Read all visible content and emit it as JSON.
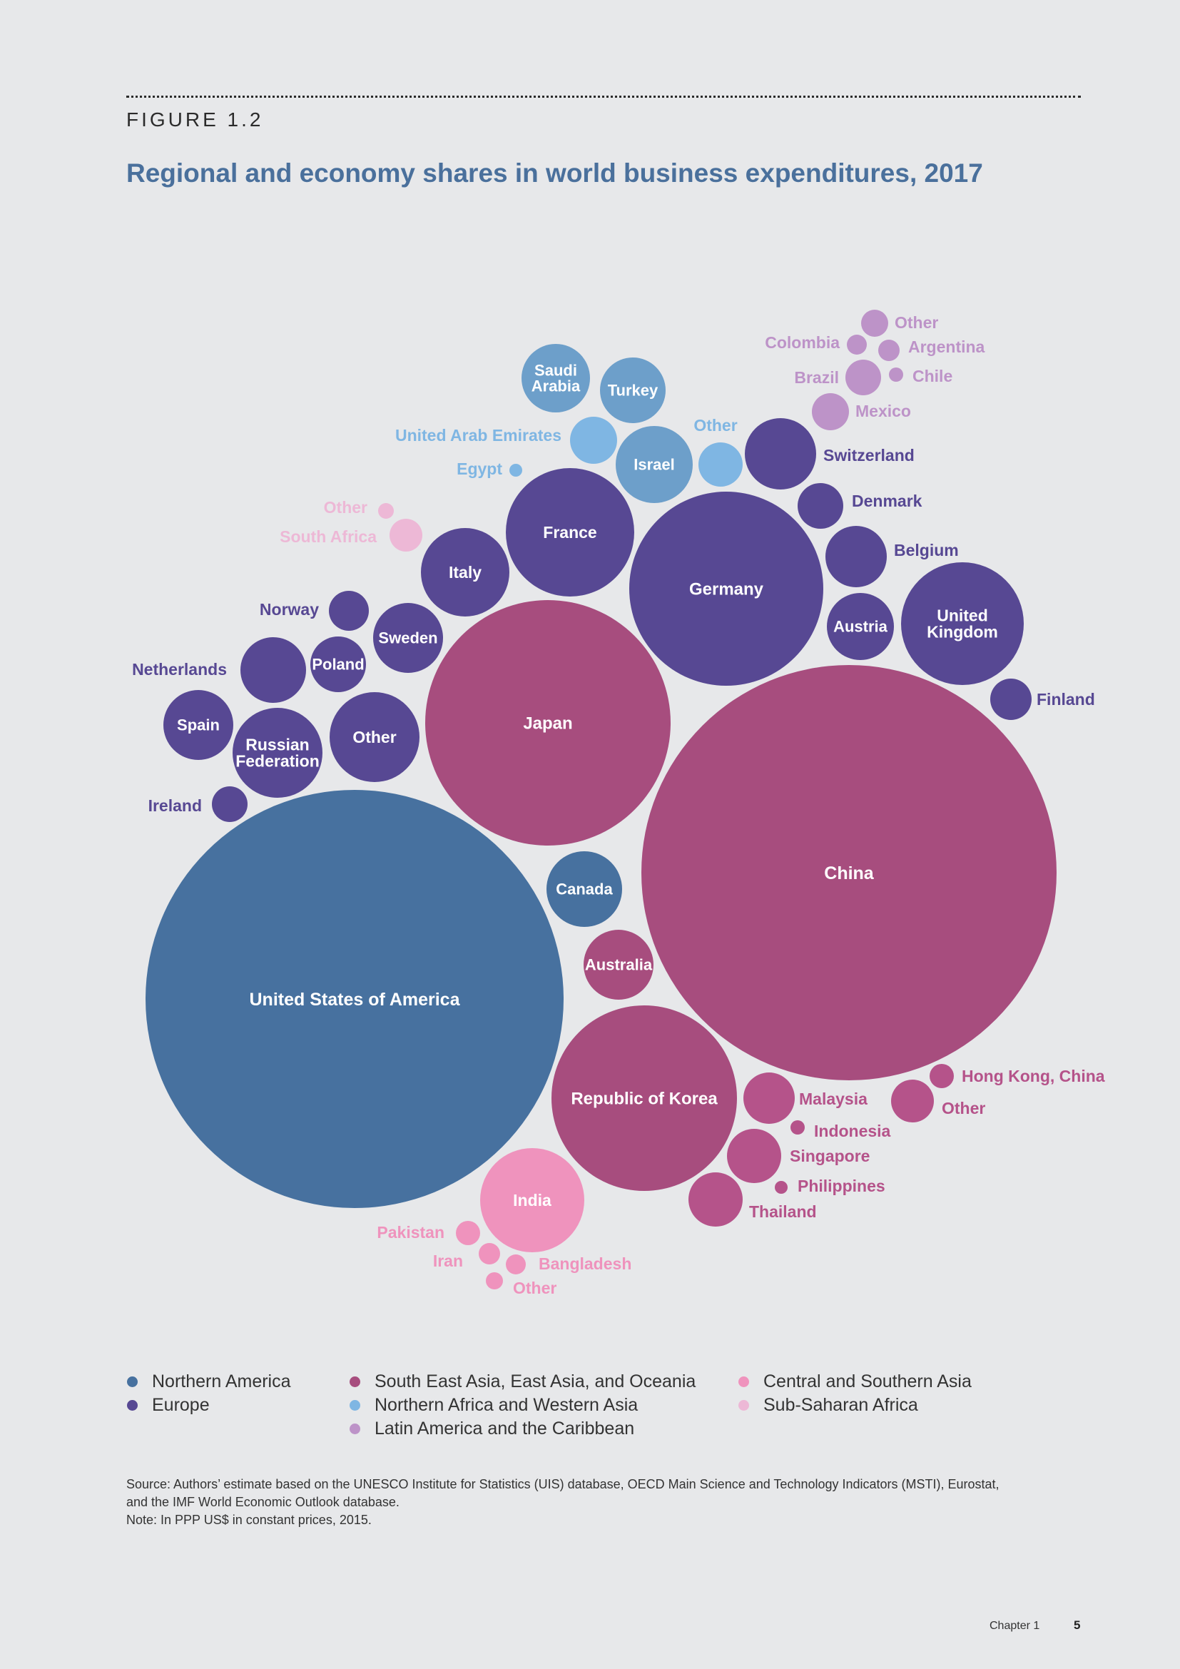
{
  "figure_label": "FIGURE 1.2",
  "colors": {
    "northern_america": "#47719f",
    "europe": "#574893",
    "asia_pacific": "#a74d7e",
    "nafrica_wasia": "#7fb6e3",
    "nafrica_wasia_dark": "#6d9fca",
    "latin_america": "#bd93c8",
    "central_south_asia": "#ef93bd",
    "sub_saharan_africa": "#edb8d6",
    "asia_pacific_light": "#b5538a"
  },
  "chart_data": {
    "type": "bubble",
    "title": "Regional and economy shares in world business expenditures, 2017",
    "unit": "share of world business expenditure (relative bubble size)",
    "regions": [
      "Northern America",
      "Europe",
      "South East Asia, East Asia, and Oceania",
      "Northern Africa and Western Asia",
      "Latin America and the Caribbean",
      "Central and Southern Asia",
      "Sub-Saharan Africa"
    ],
    "bubbles": [
      {
        "label": "United States of America",
        "region": "Northern America",
        "size": 100
      },
      {
        "label": "Canada",
        "region": "Northern America",
        "size": 3.4
      },
      {
        "label": "China",
        "region": "South East Asia, East Asia, and Oceania",
        "size": 99
      },
      {
        "label": "Japan",
        "region": "South East Asia, East Asia, and Oceania",
        "size": 34.5
      },
      {
        "label": "Republic of Korea",
        "region": "South East Asia, East Asia, and Oceania",
        "size": 19.8
      },
      {
        "label": "Australia",
        "region": "South East Asia, East Asia, and Oceania",
        "size": 2.8
      },
      {
        "label": "Malaysia",
        "region": "South East Asia, East Asia, and Oceania",
        "size": 1.6
      },
      {
        "label": "Singapore",
        "region": "South East Asia, East Asia, and Oceania",
        "size": 1.7
      },
      {
        "label": "Thailand",
        "region": "South East Asia, East Asia, and Oceania",
        "size": 1.7
      },
      {
        "label": "Hong Kong, China",
        "region": "South East Asia, East Asia, and Oceania",
        "size": 0.4
      },
      {
        "label": "Indonesia",
        "region": "South East Asia, East Asia, and Oceania",
        "size": 0.15
      },
      {
        "label": "Philippines",
        "region": "South East Asia, East Asia, and Oceania",
        "size": 0.12
      },
      {
        "label": "Other",
        "region": "South East Asia, East Asia, and Oceania",
        "size": 1.1
      },
      {
        "label": "Germany",
        "region": "Europe",
        "size": 21.4
      },
      {
        "label": "France",
        "region": "Europe",
        "size": 9.5
      },
      {
        "label": "United Kingdom",
        "region": "Europe",
        "size": 8.6
      },
      {
        "label": "Italy",
        "region": "Europe",
        "size": 4.2
      },
      {
        "label": "Russian Federation",
        "region": "Europe",
        "size": 4.6
      },
      {
        "label": "Other",
        "region": "Europe",
        "size": 4.6
      },
      {
        "label": "Sweden",
        "region": "Europe",
        "size": 2.8
      },
      {
        "label": "Switzerland",
        "region": "Europe",
        "size": 2.9
      },
      {
        "label": "Netherlands",
        "region": "Europe",
        "size": 2.4
      },
      {
        "label": "Spain",
        "region": "Europe",
        "size": 2.8
      },
      {
        "label": "Austria",
        "region": "Europe",
        "size": 2.5
      },
      {
        "label": "Belgium",
        "region": "Europe",
        "size": 2.1
      },
      {
        "label": "Denmark",
        "region": "Europe",
        "size": 1.2
      },
      {
        "label": "Finland",
        "region": "Europe",
        "size": 1.0
      },
      {
        "label": "Poland",
        "region": "Europe",
        "size": 1.7
      },
      {
        "label": "Norway",
        "region": "Europe",
        "size": 0.9
      },
      {
        "label": "Ireland",
        "region": "Europe",
        "size": 0.7
      },
      {
        "label": "Israel",
        "region": "Northern Africa and Western Asia",
        "size": 3.3
      },
      {
        "label": "Turkey",
        "region": "Northern Africa and Western Asia",
        "size": 2.4
      },
      {
        "label": "Saudi Arabia",
        "region": "Northern Africa and Western Asia",
        "size": 2.6
      },
      {
        "label": "United Arab Emirates",
        "region": "Northern Africa and Western Asia",
        "size": 1.3
      },
      {
        "label": "Other",
        "region": "Northern Africa and Western Asia",
        "size": 1.2
      },
      {
        "label": "Egypt",
        "region": "Northern Africa and Western Asia",
        "size": 0.1
      },
      {
        "label": "Brazil",
        "region": "Latin America and the Caribbean",
        "size": 0.7
      },
      {
        "label": "Mexico",
        "region": "Latin America and the Caribbean",
        "size": 0.8
      },
      {
        "label": "Other",
        "region": "Latin America and the Caribbean",
        "size": 0.4
      },
      {
        "label": "Colombia",
        "region": "Latin America and the Caribbean",
        "size": 0.2
      },
      {
        "label": "Argentina",
        "region": "Latin America and the Caribbean",
        "size": 0.3
      },
      {
        "label": "Chile",
        "region": "Latin America and the Caribbean",
        "size": 0.15
      },
      {
        "label": "India",
        "region": "Central and Southern Asia",
        "size": 6.4
      },
      {
        "label": "Pakistan",
        "region": "Central and Southern Asia",
        "size": 0.35
      },
      {
        "label": "Iran",
        "region": "Central and Southern Asia",
        "size": 0.3
      },
      {
        "label": "Bangladesh",
        "region": "Central and Southern Asia",
        "size": 0.25
      },
      {
        "label": "Other",
        "region": "Central and Southern Asia",
        "size": 0.2
      },
      {
        "label": "South Africa",
        "region": "Sub-Saharan Africa",
        "size": 0.6
      },
      {
        "label": "Other",
        "region": "Sub-Saharan Africa",
        "size": 0.15
      }
    ]
  },
  "legend": [
    {
      "label": "Northern America",
      "color": "#47719f"
    },
    {
      "label": "Europe",
      "color": "#574893"
    },
    {
      "label": "South East Asia, East Asia, and Oceania",
      "color": "#a74d7e"
    },
    {
      "label": "Northern Africa and Western Asia",
      "color": "#7fb6e3"
    },
    {
      "label": "Latin America and the Caribbean",
      "color": "#bd93c8"
    },
    {
      "label": "Central and Southern Asia",
      "color": "#ef93bd"
    },
    {
      "label": "Sub-Saharan Africa",
      "color": "#edb8d6"
    }
  ],
  "source_line_1": "Source: Authors’ estimate based on the UNESCO Institute for Statistics (UIS) database, OECD Main Science and Technology Indicators (MSTI), Eurostat,",
  "source_line_2": "and the IMF World Economic Outlook database.",
  "note": "Note: In PPP US$ in constant prices, 2015.",
  "footer": {
    "chapter": "Chapter 1",
    "page": "5"
  }
}
